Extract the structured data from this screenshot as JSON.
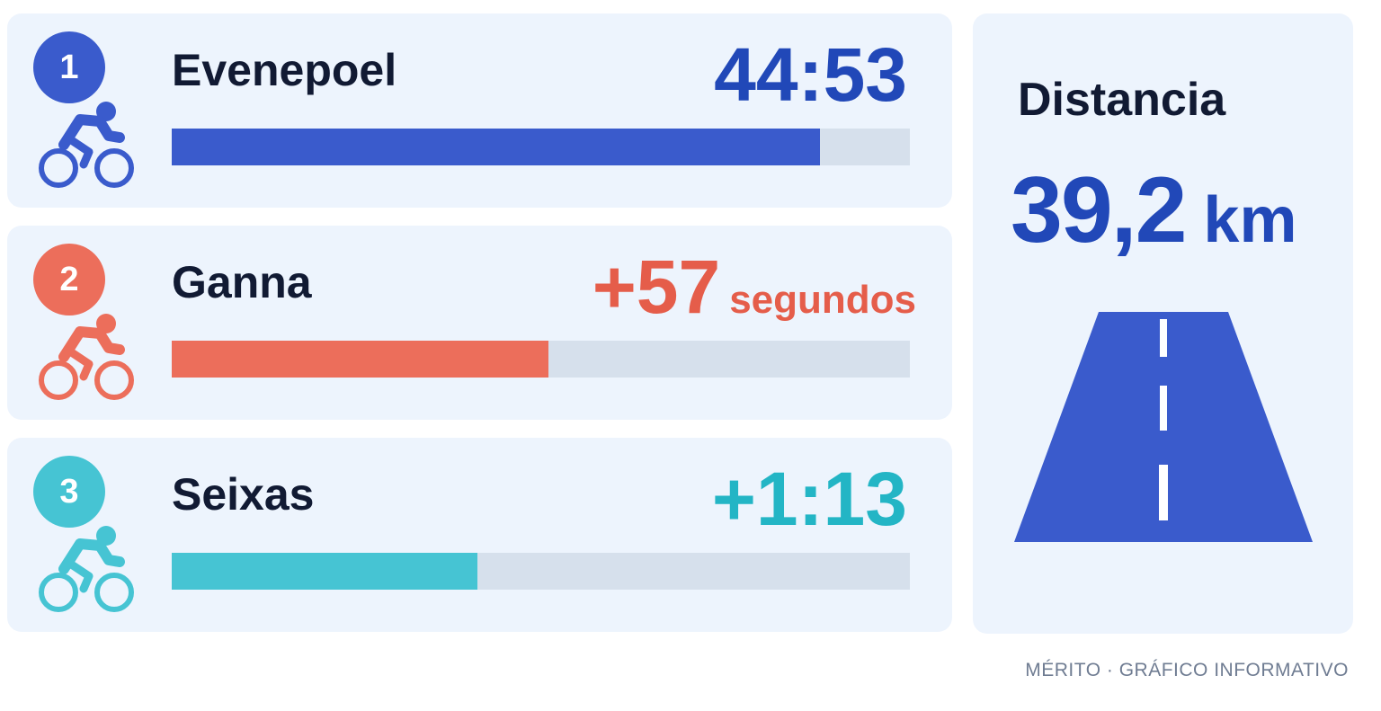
{
  "chart_data": {
    "type": "bar",
    "unit": "segundos",
    "categories": [
      "Evenepoel",
      "Ganna",
      "Seixas"
    ],
    "values": [
      2693,
      57,
      73
    ],
    "riders": [
      {
        "rank": "1",
        "name": "Evenepoel",
        "time": "44:53",
        "time_unit": "",
        "bar_fill": 0.878,
        "color": "#3a5bcc",
        "text_color": "#2148b8"
      },
      {
        "rank": "2",
        "name": "Ganna",
        "time": "+57",
        "time_unit": "segundos",
        "bar_fill": 0.51,
        "color": "#ec6e5b",
        "text_color": "#e55d4a"
      },
      {
        "rank": "3",
        "name": "Seixas",
        "time": "+1:13",
        "time_unit": "",
        "bar_fill": 0.414,
        "color": "#46c4d3",
        "text_color": "#23b5c5"
      }
    ],
    "bar_track_color": "#d6e0ec",
    "grid": false
  },
  "distance": {
    "title": "Distancia",
    "value": "39,2",
    "unit": "km",
    "color": "#3a5bcc",
    "icon": "road-icon"
  },
  "footer": {
    "credit": "MÉRITO · GRÁFICO INFORMATIVO"
  },
  "icons": {
    "rider_icon": "cyclist-icon"
  }
}
